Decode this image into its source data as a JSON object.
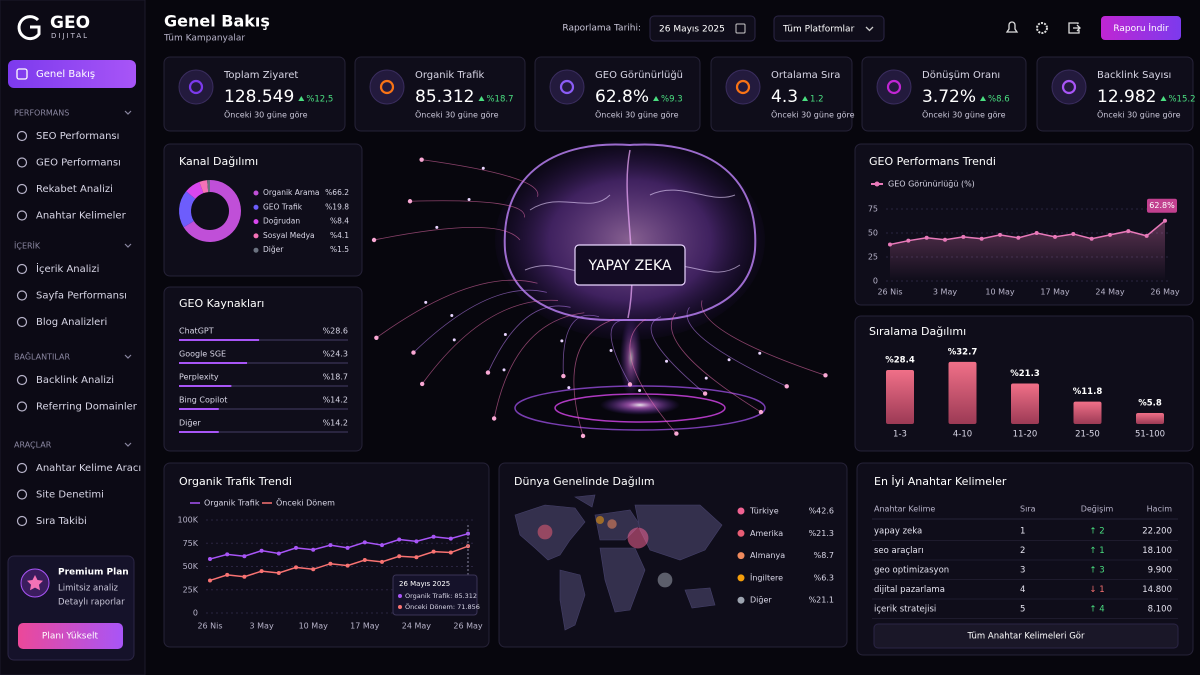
{
  "brand": {
    "name": "GEO",
    "sub": "DIJITAL"
  },
  "header": {
    "title": "Genel Bakış",
    "subtitle": "Tüm Kampanyalar",
    "date_label": "Raporlama Tarihi:",
    "date": "26 Mayıs 2025",
    "platform": "Tüm Platformlar",
    "button": "Raporu İndir"
  },
  "sidebar": {
    "active": "Genel Bakış",
    "sections": [
      {
        "title": "PERFORMANS",
        "items": [
          "SEO Performansı",
          "GEO Performansı",
          "Rekabet Analizi",
          "Anahtar Kelimeler"
        ]
      },
      {
        "title": "İÇERİK",
        "items": [
          "İçerik Analizi",
          "Sayfa Performansı",
          "Blog Analizleri"
        ]
      },
      {
        "title": "BAĞLANTILAR",
        "items": [
          "Backlink Analizi",
          "Referring Domainler"
        ]
      },
      {
        "title": "ARAÇLAR",
        "items": [
          "Anahtar Kelime Aracı",
          "Site Denetimi",
          "Sıra Takibi"
        ]
      }
    ],
    "plan": {
      "title": "Premium Plan",
      "lines": [
        "Limitsiz analiz",
        "Detaylı raporlar"
      ],
      "button": "Planı Yükselt"
    }
  },
  "kpis": [
    {
      "label": "Toplam Ziyaret",
      "value": "128.549",
      "change": "%12,5",
      "note": "Önceki 30 güne göre"
    },
    {
      "label": "Organik Trafik",
      "value": "85.312",
      "change": "%18.7",
      "note": "Önceki 30 güne göre"
    },
    {
      "label": "GEO Görünürlüğü",
      "value": "62.8%",
      "change": "%9.3",
      "note": "Önceki 30 güne göre"
    },
    {
      "label": "Ortalama Sıra",
      "value": "4.3",
      "change": "1.2",
      "note": "Önceki 30 güne göre"
    },
    {
      "label": "Dönüşüm Oranı",
      "value": "3.72%",
      "change": "%8.6",
      "note": "Önceki 30 güne göre"
    },
    {
      "label": "Backlink Sayısı",
      "value": "12.982",
      "change": "%15.2",
      "note": "Önceki 30 güne göre"
    }
  ],
  "channel": {
    "type": "pie",
    "title": "Kanal Dağılımı",
    "categories": [
      "Organik Arama",
      "GEO Trafik",
      "Doğrudan",
      "Sosyal Medya",
      "Diğer"
    ],
    "values": [
      66.2,
      19.8,
      8.4,
      4.1,
      1.5
    ],
    "value_labels": [
      "%66.2",
      "%19.8",
      "%8.4",
      "%4.1",
      "%1.5"
    ],
    "colors": [
      "#c04fd8",
      "#6d5dfc",
      "#d946ef",
      "#f472b6",
      "#6b7280"
    ]
  },
  "sources": {
    "type": "bar",
    "title": "GEO Kaynakları",
    "categories": [
      "ChatGPT",
      "Google SGE",
      "Perplexity",
      "Bing Copilot",
      "Diğer"
    ],
    "values": [
      28.6,
      24.3,
      18.7,
      14.2,
      14.2
    ],
    "value_labels": [
      "%28.6",
      "%24.3",
      "%18.7",
      "%14.2",
      "%14.2"
    ],
    "color": "#a855f7"
  },
  "ai_label": "YAPAY ZEKA",
  "geo_trend": {
    "type": "line",
    "title": "GEO Performans Trendi",
    "categories": [
      "26 Nis",
      null,
      null,
      "3 May",
      null,
      null,
      "10 May",
      null,
      null,
      "17 May",
      null,
      null,
      "24 May",
      null,
      null,
      "26 May"
    ],
    "series": [
      {
        "name": "GEO Görünürlüğü (%)",
        "color": "#e879b9",
        "values": [
          38,
          42,
          45,
          43,
          46,
          44,
          48,
          45,
          50,
          46,
          49,
          44,
          48,
          52,
          47,
          62.8
        ]
      }
    ],
    "ylim": [
      0,
      75
    ],
    "yticks": [
      0,
      25,
      50,
      75
    ],
    "grid": true,
    "last_label": "62.8%"
  },
  "ranking": {
    "type": "bar",
    "title": "Sıralama Dağılımı",
    "categories": [
      "1-3",
      "4-10",
      "11-20",
      "21-50",
      "51-100"
    ],
    "values": [
      28.4,
      32.7,
      21.3,
      11.8,
      5.8
    ],
    "value_labels": [
      "%28.4",
      "%32.7",
      "%21.3",
      "%11.8",
      "%5.8"
    ],
    "color": "#e0607a"
  },
  "organic_trend": {
    "type": "line",
    "title": "Organik Trafik Trendi",
    "categories": [
      "26 Nis",
      null,
      null,
      "3 May",
      null,
      null,
      "10 May",
      null,
      null,
      "17 May",
      null,
      null,
      "24 May",
      null,
      null,
      "26 May"
    ],
    "series": [
      {
        "name": "Organik Trafik",
        "color": "#a855f7",
        "values": [
          58000,
          63000,
          61000,
          67000,
          64000,
          70000,
          68000,
          73000,
          70000,
          76000,
          73000,
          79000,
          77000,
          82000,
          80000,
          85312
        ]
      },
      {
        "name": "Önceki Dönem",
        "color": "#f97372",
        "values": [
          35000,
          41000,
          39000,
          45000,
          43000,
          49000,
          47000,
          53000,
          51000,
          57000,
          55000,
          61000,
          60000,
          66000,
          65000,
          71856
        ]
      }
    ],
    "ylim": [
      0,
      100000
    ],
    "yticks": [
      0,
      {
        "value": 25000,
        "label": "25K"
      },
      {
        "value": 50000,
        "label": "50K"
      },
      {
        "value": 75000,
        "label": "75K"
      },
      {
        "value": 100000,
        "label": "100K"
      }
    ],
    "grid": true,
    "tooltip": {
      "date": "26 Mayıs 2025",
      "lines": [
        "Organik Trafik: 85.312",
        "Önceki Dönem: 71.856"
      ]
    }
  },
  "world": {
    "type": "map",
    "title": "Dünya Genelinde Dağılım",
    "categories": [
      "Türkiye",
      "Amerika",
      "Almanya",
      "İngiltere",
      "Diğer"
    ],
    "values": [
      42.6,
      21.3,
      8.7,
      6.3,
      21.1
    ],
    "value_labels": [
      "%42.6",
      "%21.3",
      "%8.7",
      "%6.3",
      "%21.1"
    ],
    "colors": [
      "#f06292",
      "#e85d75",
      "#f08a5d",
      "#f59e0b",
      "#9ca3af"
    ]
  },
  "keywords": {
    "title": "En İyi Anahtar Kelimeler",
    "columns": [
      "Anahtar Kelime",
      "Sıra",
      "Değişim",
      "Hacim"
    ],
    "rows": [
      [
        "yapay zeka",
        "1",
        "↑ 2",
        "22.200"
      ],
      [
        "seo araçları",
        "2",
        "↑ 1",
        "18.100"
      ],
      [
        "geo optimizasyon",
        "3",
        "↑ 3",
        "9.900"
      ],
      [
        "dijital pazarlama",
        "4",
        "↓ 1",
        "14.800"
      ],
      [
        "içerik stratejisi",
        "5",
        "↑ 4",
        "8.100"
      ]
    ],
    "button": "Tüm Anahtar Kelimeleri Gör"
  }
}
